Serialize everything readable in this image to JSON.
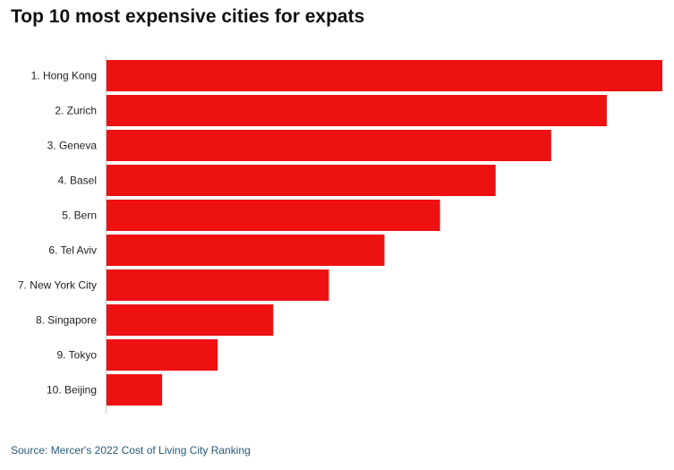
{
  "title": "Top 10 most expensive cities for expats",
  "source": "Source: Mercer's 2022 Cost of Living City Ranking",
  "colors": {
    "bar": "#ee1111",
    "axis": "#c8c8c8",
    "source_text": "#2a5a7a"
  },
  "chart_data": {
    "type": "bar",
    "orientation": "horizontal",
    "title": "Top 10 most expensive cities for expats",
    "categories": [
      "1. Hong Kong",
      "2. Zurich",
      "3. Geneva",
      "4. Basel",
      "5. Bern",
      "6. Tel Aviv",
      "7. New York City",
      "8. Singapore",
      "9. Tokyo",
      "10. Beijing"
    ],
    "values": [
      10,
      9,
      8,
      7,
      6,
      5,
      4,
      3,
      2,
      1
    ],
    "xlim": [
      0,
      10
    ],
    "grid": false,
    "legend": "none"
  }
}
